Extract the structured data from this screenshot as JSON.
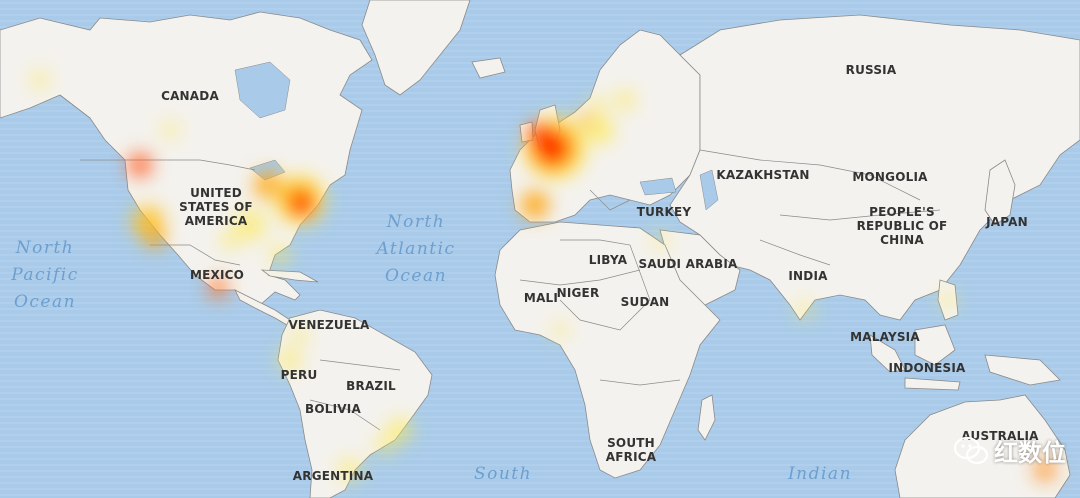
{
  "map": {
    "country_labels": [
      {
        "key": "canada",
        "lines": [
          "CANADA"
        ]
      },
      {
        "key": "usa",
        "lines": [
          "UNITED",
          "STATES OF",
          "AMERICA"
        ]
      },
      {
        "key": "mexico",
        "lines": [
          "MEXICO"
        ]
      },
      {
        "key": "venezuela",
        "lines": [
          "VENEZUELA"
        ]
      },
      {
        "key": "peru",
        "lines": [
          "PERU"
        ]
      },
      {
        "key": "brazil",
        "lines": [
          "BRAZIL"
        ]
      },
      {
        "key": "bolivia",
        "lines": [
          "BOLIVIA"
        ]
      },
      {
        "key": "argentina",
        "lines": [
          "ARGENTINA"
        ]
      },
      {
        "key": "russia",
        "lines": [
          "RUSSIA"
        ]
      },
      {
        "key": "kazakhstan",
        "lines": [
          "KAZAKHSTAN"
        ]
      },
      {
        "key": "mongolia",
        "lines": [
          "MONGOLIA"
        ]
      },
      {
        "key": "china",
        "lines": [
          "PEOPLE'S",
          "REPUBLIC OF",
          "CHINA"
        ]
      },
      {
        "key": "japan",
        "lines": [
          "JAPAN"
        ]
      },
      {
        "key": "turkey",
        "lines": [
          "TURKEY"
        ]
      },
      {
        "key": "libya",
        "lines": [
          "LIBYA"
        ]
      },
      {
        "key": "saudi",
        "lines": [
          "SAUDI ARABIA"
        ]
      },
      {
        "key": "mali",
        "lines": [
          "MALI"
        ]
      },
      {
        "key": "niger",
        "lines": [
          "NIGER"
        ]
      },
      {
        "key": "sudan",
        "lines": [
          "SUDAN"
        ]
      },
      {
        "key": "india",
        "lines": [
          "INDIA"
        ]
      },
      {
        "key": "malaysia",
        "lines": [
          "MALAYSIA"
        ]
      },
      {
        "key": "indonesia",
        "lines": [
          "INDONESIA"
        ]
      },
      {
        "key": "south-africa",
        "lines": [
          "SOUTH",
          "AFRICA"
        ]
      },
      {
        "key": "australia",
        "lines": [
          "AUSTRALIA"
        ]
      }
    ],
    "ocean_labels": [
      {
        "key": "north-pacific",
        "lines": [
          "North",
          "Pacific",
          "Ocean"
        ]
      },
      {
        "key": "north-atlantic",
        "lines": [
          "North",
          "Atlantic",
          "Ocean"
        ]
      },
      {
        "key": "south-atlantic",
        "lines": [
          "South"
        ]
      },
      {
        "key": "indian",
        "lines": [
          "Indian"
        ]
      }
    ],
    "heat_spots": [
      {
        "region": "western-europe-france-uk",
        "intensity": 1.0
      },
      {
        "region": "northeast-usa",
        "intensity": 0.85
      },
      {
        "region": "great-lakes-usa",
        "intensity": 0.6
      },
      {
        "region": "pacific-northwest-usa",
        "intensity": 0.55
      },
      {
        "region": "california",
        "intensity": 0.5
      },
      {
        "region": "spain-portugal",
        "intensity": 0.55
      },
      {
        "region": "mexico-city",
        "intensity": 0.45
      },
      {
        "region": "southeast-usa",
        "intensity": 0.3
      },
      {
        "region": "central-europe",
        "intensity": 0.35
      },
      {
        "region": "scandinavia-baltic",
        "intensity": 0.3
      },
      {
        "region": "brazil-southeast",
        "intensity": 0.3
      },
      {
        "region": "colombia-peru",
        "intensity": 0.25
      },
      {
        "region": "chile-argentina",
        "intensity": 0.25
      },
      {
        "region": "india",
        "intensity": 0.2
      },
      {
        "region": "philippines",
        "intensity": 0.2
      },
      {
        "region": "sydney-australia",
        "intensity": 0.45
      },
      {
        "region": "west-africa",
        "intensity": 0.2
      },
      {
        "region": "middle-east",
        "intensity": 0.2
      }
    ],
    "colors": {
      "ocean": "#a9cbe9",
      "land": "#f4f2ee",
      "border": "#8a8a8a",
      "heat_hot": "#ff2a00",
      "heat_warm": "#ffa000",
      "heat_cool": "#ffe94a"
    }
  },
  "watermark": {
    "icon": "wechat-icon",
    "text": "红数位"
  }
}
